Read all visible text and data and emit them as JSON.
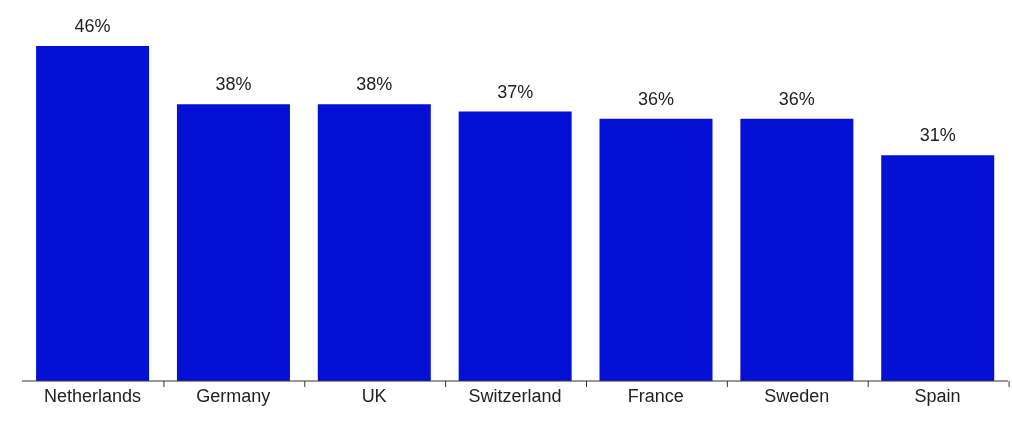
{
  "chart_data": {
    "type": "bar",
    "categories": [
      "Netherlands",
      "Germany",
      "UK",
      "Switzerland",
      "France",
      "Sweden",
      "Spain"
    ],
    "values": [
      46,
      38,
      38,
      37,
      36,
      36,
      31
    ],
    "value_labels": [
      "46%",
      "38%",
      "38%",
      "37%",
      "36%",
      "36%",
      "31%"
    ],
    "color": "#0410d4",
    "ylim": [
      0,
      46
    ]
  }
}
